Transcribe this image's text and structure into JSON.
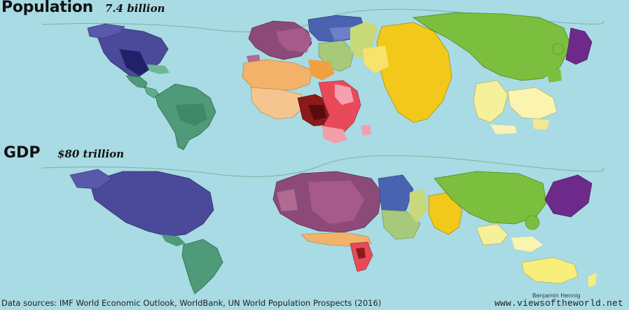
{
  "panels": {
    "population": {
      "title": "Population",
      "subtitle": "7.4 billion"
    },
    "gdp": {
      "title": "GDP",
      "subtitle": "$80 trillion"
    }
  },
  "footer": {
    "sources": "Data sources: IMF World Economic Outlook, WorldBank, UN World Population Prospects (2016)",
    "author": "Benjamin Hennig",
    "website": "www.viewsoftheworld.net"
  },
  "colors": {
    "ocean": "#a8dbe3",
    "north-america": "#4b4a9a",
    "latin-america": "#4f9a78",
    "europe": "#8c4a78",
    "russia-central-asia": "#4a63b0",
    "middle-east": "#a7c97a",
    "north-africa": "#f2b26a",
    "west-africa": "#f5c590",
    "central-africa": "#8b1a1a",
    "east-africa": "#e84a5a",
    "south-asia": "#f2c81a",
    "east-asia": "#7cbf3e",
    "japan": "#6e2a8a",
    "southeast-asia": "#f7f09a",
    "oceania": "#f7ef7a"
  }
}
